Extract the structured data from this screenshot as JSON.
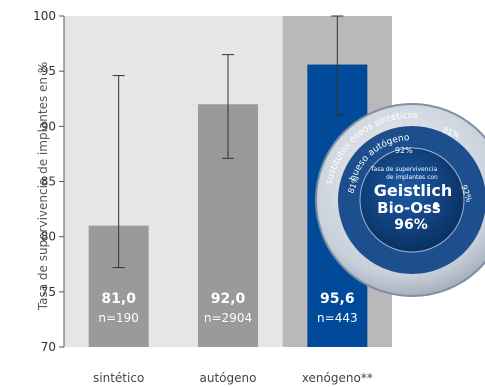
{
  "chart_data": {
    "type": "bar",
    "ylabel": "Tasa de supervivencia de implantes en %",
    "ylim": [
      70,
      100
    ],
    "yticks": [
      70,
      75,
      80,
      85,
      90,
      95,
      100
    ],
    "categories": [
      "sintético",
      "autógeno",
      "xenógeno**"
    ],
    "values": [
      81.0,
      92.0,
      95.6
    ],
    "value_labels": [
      "81,0",
      "92,0",
      "95,6"
    ],
    "n_labels": [
      "n=190",
      "n=2904",
      "n=443"
    ],
    "error_low": [
      77.2,
      87.1,
      91.0
    ],
    "error_high": [
      94.6,
      96.5,
      100
    ],
    "bar_colors": [
      "#9a9a9a",
      "#9a9a9a",
      "#004a99"
    ],
    "panel_colors": [
      "#e6e6e6",
      "#e6e6e6",
      "#b9b9b9"
    ],
    "grid": false
  },
  "seal": {
    "ring_outer": "sustitutos óseos sintéticos",
    "ring_top": "hueso autógeno",
    "ring_inner_left": "hueso autógeno",
    "pct_sintetico": "81%",
    "pct_autogeno": "92%",
    "pct_top": "81%",
    "pct_right": "92%",
    "pct_left": "81%",
    "center_line1": "Tasa de supervivencia",
    "center_line2": "de implantes con",
    "brand1": "Geistlich",
    "brand2": "Bio-Oss",
    "brand_pct": "96%",
    "outer_bottom": "sustitutos óseos sintéticos"
  },
  "colors": {
    "axis": "#555555",
    "error_bar": "#333333",
    "seal_blue": "#0a3c78",
    "seal_ring": "#7f8fa6"
  }
}
